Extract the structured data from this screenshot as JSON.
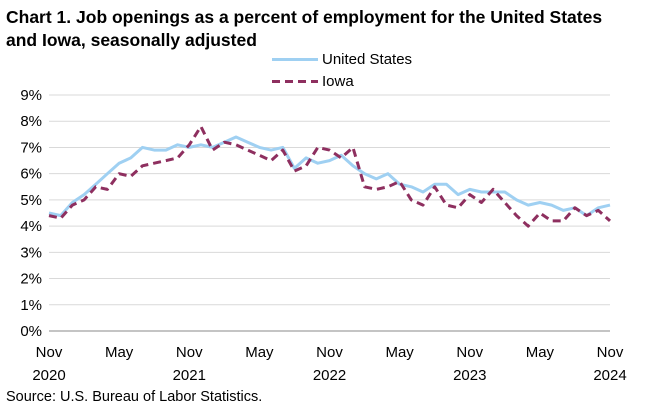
{
  "chart_data": {
    "type": "line",
    "title": "Chart 1. Job openings as a percent of employment for the United States and Iowa, seasonally adjusted",
    "xlabel": "",
    "ylabel": "",
    "ylim": [
      0,
      9
    ],
    "y_ticks": [
      "0%",
      "1%",
      "2%",
      "3%",
      "4%",
      "5%",
      "6%",
      "7%",
      "8%",
      "9%"
    ],
    "x_ticks": [
      {
        "index": 0,
        "month": "Nov",
        "year": "2020"
      },
      {
        "index": 6,
        "month": "May",
        "year": ""
      },
      {
        "index": 12,
        "month": "Nov",
        "year": "2021"
      },
      {
        "index": 18,
        "month": "May",
        "year": ""
      },
      {
        "index": 24,
        "month": "Nov",
        "year": "2022"
      },
      {
        "index": 30,
        "month": "May",
        "year": ""
      },
      {
        "index": 36,
        "month": "Nov",
        "year": "2023"
      },
      {
        "index": 42,
        "month": "May",
        "year": ""
      },
      {
        "index": 48,
        "month": "Nov",
        "year": "2024"
      }
    ],
    "legend_position": "top-center",
    "series": [
      {
        "name": "United States",
        "color": "#9fd0f2",
        "style": "solid",
        "values": [
          4.5,
          4.4,
          4.9,
          5.2,
          5.6,
          6.0,
          6.4,
          6.6,
          7.0,
          6.9,
          6.9,
          7.1,
          7.0,
          7.1,
          7.0,
          7.2,
          7.4,
          7.2,
          7.0,
          6.9,
          7.0,
          6.2,
          6.6,
          6.4,
          6.5,
          6.7,
          6.3,
          6.0,
          5.8,
          6.0,
          5.6,
          5.5,
          5.3,
          5.6,
          5.6,
          5.2,
          5.4,
          5.3,
          5.3,
          5.3,
          5.0,
          4.8,
          4.9,
          4.8,
          4.6,
          4.7,
          4.4,
          4.7,
          4.8
        ]
      },
      {
        "name": "Iowa",
        "color": "#8e2f5f",
        "style": "dashed",
        "values": [
          4.4,
          4.3,
          4.8,
          5.0,
          5.5,
          5.4,
          6.0,
          5.9,
          6.3,
          6.4,
          6.5,
          6.6,
          7.1,
          7.8,
          6.9,
          7.2,
          7.1,
          6.9,
          6.7,
          6.5,
          6.9,
          6.1,
          6.3,
          7.0,
          6.9,
          6.6,
          7.0,
          5.5,
          5.4,
          5.5,
          5.7,
          5.0,
          4.8,
          5.5,
          4.8,
          4.7,
          5.2,
          4.9,
          5.4,
          4.9,
          4.4,
          4.0,
          4.5,
          4.2,
          4.2,
          4.7,
          4.4,
          4.6,
          4.2
        ]
      }
    ]
  },
  "source": "Source: U.S. Bureau of Labor Statistics."
}
